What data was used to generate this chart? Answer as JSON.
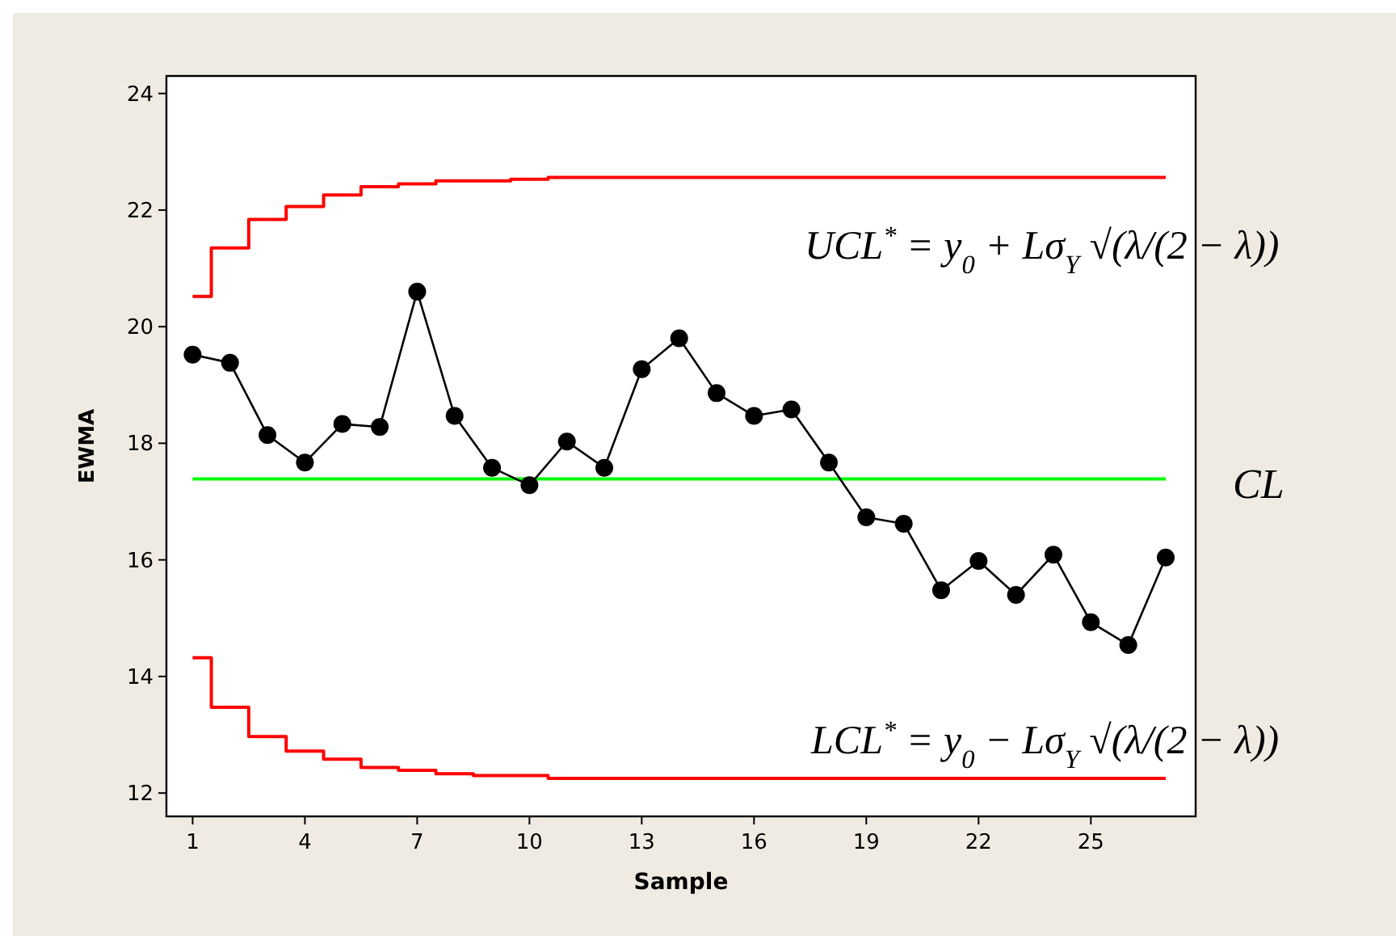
{
  "chart_data": {
    "type": "line",
    "xlabel": "Sample",
    "ylabel": "EWMA",
    "x": [
      1,
      2,
      3,
      4,
      5,
      6,
      7,
      8,
      9,
      10,
      11,
      12,
      13,
      14,
      15,
      16,
      17,
      18,
      19,
      20,
      21,
      22,
      23,
      24,
      25,
      26,
      27
    ],
    "series": [
      {
        "color": "#000000",
        "marker": "circle",
        "values": [
          19.52,
          19.38,
          18.14,
          17.67,
          18.33,
          18.28,
          20.6,
          18.47,
          17.58,
          17.28,
          18.03,
          17.58,
          19.27,
          19.8,
          18.86,
          18.47,
          18.58,
          17.67,
          16.73,
          16.62,
          15.48,
          15.98,
          15.4,
          16.09,
          14.93,
          14.54,
          16.04
        ]
      },
      {
        "type": "step",
        "color": "#ff0000",
        "marker": "none",
        "values": [
          20.52,
          21.35,
          21.84,
          22.06,
          22.26,
          22.4,
          22.45,
          22.5,
          22.5,
          22.53,
          22.56,
          22.56,
          22.56,
          22.56,
          22.56,
          22.56,
          22.56,
          22.56,
          22.56,
          22.56,
          22.56,
          22.56,
          22.56,
          22.56,
          22.56,
          22.56,
          22.56
        ]
      },
      {
        "type": "step",
        "color": "#ff0000",
        "marker": "none",
        "values": [
          14.32,
          13.47,
          12.97,
          12.72,
          12.58,
          12.44,
          12.39,
          12.33,
          12.3,
          12.3,
          12.25,
          12.25,
          12.25,
          12.25,
          12.25,
          12.25,
          12.25,
          12.25,
          12.25,
          12.25,
          12.25,
          12.25,
          12.25,
          12.25,
          12.25,
          12.25,
          12.25
        ]
      }
    ],
    "ref_lines": [
      {
        "axis": "y",
        "value": 17.39,
        "color": "#00ff00"
      }
    ],
    "xlim": [
      0.3,
      27.8
    ],
    "xticks": [
      1,
      4,
      7,
      10,
      13,
      16,
      19,
      22,
      25
    ],
    "ylim": [
      11.6,
      24.3
    ],
    "yticks": [
      12,
      14,
      16,
      18,
      20,
      22,
      24
    ],
    "grid": false,
    "annotations": [
      "UCL$^{*}$ = y$_{0}$ + Lσ$_{Y}$ √(λ/(2 − λ))",
      "CL",
      "LCL$^{*}$ = y$_{0}$ − Lσ$_{Y}$ √(λ/(2 − λ))"
    ]
  }
}
